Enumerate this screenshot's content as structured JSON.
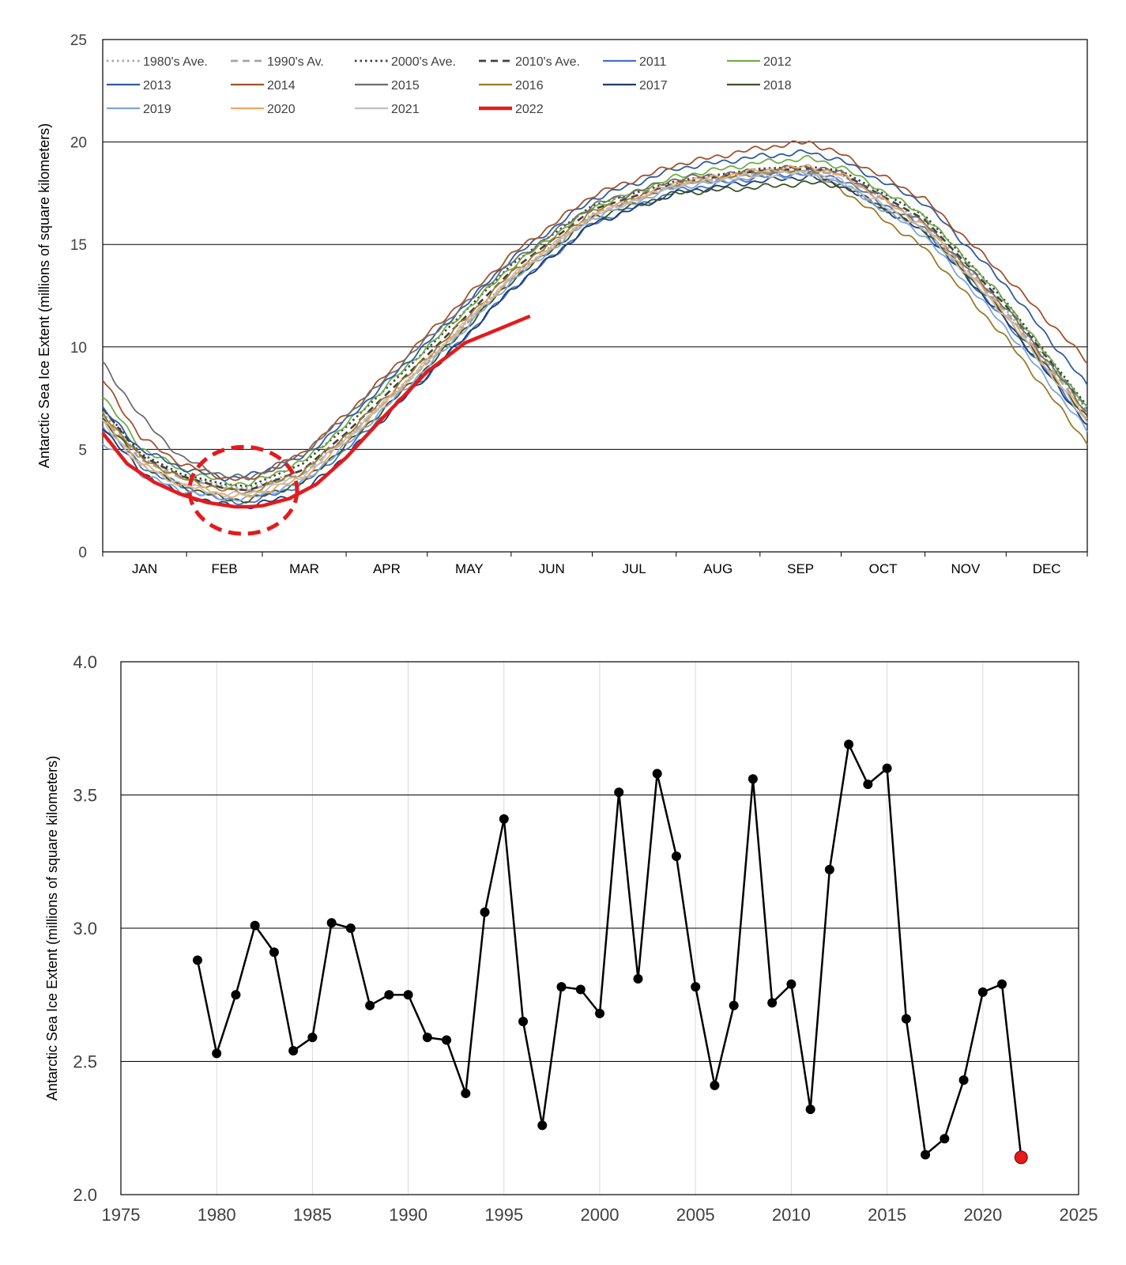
{
  "chart_data": [
    {
      "type": "line",
      "ylabel": "Antarctic Sea Ice Extent (millions of square kilometers)",
      "xlabel": "",
      "ylim": [
        0,
        25
      ],
      "y_ticks": [
        "0",
        "5",
        "10",
        "15",
        "20",
        "25"
      ],
      "y_tick_values": [
        0,
        5,
        10,
        15,
        20,
        25
      ],
      "x_units": "day of year",
      "xlim": [
        1,
        365
      ],
      "x_categories": [
        "JAN",
        "FEB",
        "MAR",
        "APR",
        "MAY",
        "JUN",
        "JUL",
        "AUG",
        "SEP",
        "OCT",
        "NOV",
        "DEC"
      ],
      "month_start_days": [
        1,
        32,
        60,
        91,
        121,
        152,
        182,
        213,
        244,
        274,
        305,
        335
      ],
      "grid": "horizontal",
      "legend_position": "top-left",
      "annotation": "red dashed circle around the February minimum",
      "annotation_center": [
        53,
        3.0
      ],
      "series": [
        {
          "name": "1980's Ave.",
          "color": "#a6a6a6",
          "style": "dotted",
          "x": [
            1,
            15,
            30,
            46,
            55,
            75,
            91,
            121,
            152,
            182,
            213,
            244,
            262,
            274,
            305,
            335,
            365
          ],
          "y": [
            6.8,
            4.6,
            3.7,
            3.2,
            3.1,
            4.0,
            5.6,
            9.3,
            13.4,
            16.5,
            17.9,
            18.5,
            18.6,
            18.4,
            16.1,
            11.8,
            6.9
          ]
        },
        {
          "name": "1990's Av.",
          "color": "#a6a6a6",
          "style": "dashed",
          "x": [
            1,
            15,
            30,
            46,
            55,
            75,
            91,
            121,
            152,
            182,
            213,
            244,
            262,
            274,
            305,
            335,
            365
          ],
          "y": [
            6.6,
            4.5,
            3.6,
            3.1,
            3.0,
            3.8,
            5.5,
            9.2,
            13.3,
            16.4,
            17.9,
            18.5,
            18.6,
            18.4,
            16.0,
            11.7,
            6.7
          ]
        },
        {
          "name": "2000's Ave.",
          "color": "#404040",
          "style": "dotted",
          "x": [
            1,
            15,
            30,
            46,
            55,
            75,
            91,
            121,
            152,
            182,
            213,
            244,
            262,
            274,
            305,
            335,
            365
          ],
          "y": [
            7.0,
            4.8,
            3.8,
            3.3,
            3.2,
            4.3,
            6.1,
            9.9,
            14.0,
            16.9,
            18.1,
            18.7,
            18.8,
            18.6,
            16.4,
            12.2,
            7.1
          ]
        },
        {
          "name": "2010's Ave.",
          "color": "#404040",
          "style": "dashed",
          "x": [
            1,
            15,
            30,
            46,
            55,
            75,
            91,
            121,
            152,
            182,
            213,
            244,
            262,
            274,
            305,
            335,
            365
          ],
          "y": [
            7.0,
            4.7,
            3.7,
            3.1,
            3.0,
            4.0,
            5.8,
            9.6,
            13.7,
            16.7,
            18.0,
            18.6,
            18.7,
            18.5,
            16.2,
            12.0,
            7.0
          ]
        },
        {
          "name": "2011",
          "color": "#4472c4",
          "style": "solid",
          "x": [
            1,
            15,
            30,
            46,
            55,
            75,
            91,
            121,
            152,
            182,
            213,
            244,
            262,
            274,
            305,
            335,
            365
          ],
          "y": [
            6.2,
            4.2,
            3.2,
            2.5,
            2.4,
            3.3,
            5.0,
            8.6,
            12.8,
            16.0,
            17.6,
            18.3,
            18.5,
            18.2,
            15.8,
            11.2,
            6.4
          ]
        },
        {
          "name": "2012",
          "color": "#70ad47",
          "style": "solid",
          "x": [
            1,
            15,
            30,
            46,
            55,
            75,
            91,
            121,
            152,
            182,
            213,
            244,
            262,
            274,
            305,
            335,
            365
          ],
          "y": [
            7.6,
            5.1,
            4.0,
            3.4,
            3.3,
            4.4,
            6.2,
            10.0,
            13.9,
            16.8,
            18.3,
            19.0,
            19.2,
            18.8,
            16.4,
            12.2,
            7.0
          ]
        },
        {
          "name": "2013",
          "color": "#2e5c9e",
          "style": "solid",
          "x": [
            1,
            15,
            30,
            46,
            55,
            75,
            91,
            121,
            152,
            182,
            213,
            244,
            262,
            274,
            305,
            335,
            365
          ],
          "y": [
            7.0,
            5.0,
            4.1,
            3.6,
            3.7,
            4.6,
            6.4,
            10.2,
            14.3,
            17.2,
            18.7,
            19.3,
            19.5,
            19.1,
            17.0,
            13.0,
            8.1
          ]
        },
        {
          "name": "2014",
          "color": "#a0522d",
          "style": "solid",
          "x": [
            1,
            15,
            30,
            46,
            55,
            75,
            91,
            121,
            152,
            182,
            213,
            244,
            262,
            274,
            305,
            335,
            365
          ],
          "y": [
            8.4,
            5.6,
            4.3,
            3.6,
            3.5,
            4.8,
            6.7,
            10.6,
            14.5,
            17.4,
            18.9,
            19.7,
            20.0,
            19.4,
            17.2,
            13.4,
            9.3
          ]
        },
        {
          "name": "2015",
          "color": "#6d6d6d",
          "style": "solid",
          "x": [
            1,
            15,
            30,
            46,
            55,
            75,
            91,
            121,
            152,
            182,
            213,
            244,
            262,
            274,
            305,
            335,
            365
          ],
          "y": [
            9.2,
            6.6,
            4.6,
            3.7,
            3.6,
            4.8,
            6.6,
            10.4,
            14.1,
            16.9,
            18.2,
            18.6,
            18.8,
            18.5,
            16.0,
            11.9,
            6.8
          ]
        },
        {
          "name": "2016",
          "color": "#9b7b28",
          "style": "solid",
          "x": [
            1,
            15,
            30,
            46,
            55,
            75,
            91,
            121,
            152,
            182,
            213,
            244,
            262,
            274,
            305,
            335,
            365
          ],
          "y": [
            6.8,
            4.6,
            3.6,
            3.0,
            2.9,
            3.9,
            5.7,
            9.5,
            13.6,
            16.6,
            17.9,
            18.5,
            18.6,
            17.7,
            14.8,
            10.4,
            5.3
          ]
        },
        {
          "name": "2017",
          "color": "#1f3b70",
          "style": "solid",
          "x": [
            1,
            15,
            30,
            46,
            55,
            75,
            91,
            121,
            152,
            182,
            213,
            244,
            262,
            274,
            305,
            335,
            365
          ],
          "y": [
            6.1,
            3.9,
            2.8,
            2.3,
            2.2,
            2.9,
            4.7,
            8.6,
            12.8,
            16.0,
            17.5,
            18.1,
            18.3,
            17.9,
            15.6,
            11.3,
            6.2
          ]
        },
        {
          "name": "2018",
          "color": "#375623",
          "style": "solid",
          "x": [
            1,
            15,
            30,
            46,
            55,
            75,
            91,
            121,
            152,
            182,
            213,
            244,
            262,
            274,
            305,
            335,
            365
          ],
          "y": [
            6.5,
            4.3,
            3.2,
            2.6,
            2.5,
            3.4,
            5.2,
            9.0,
            13.2,
            16.3,
            17.5,
            17.8,
            18.0,
            17.9,
            15.7,
            11.5,
            6.5
          ]
        },
        {
          "name": "2019",
          "color": "#7ea6d8",
          "style": "solid",
          "x": [
            1,
            15,
            30,
            46,
            55,
            75,
            91,
            121,
            152,
            182,
            213,
            244,
            262,
            274,
            305,
            335,
            365
          ],
          "y": [
            5.3,
            3.8,
            3.0,
            2.6,
            2.6,
            3.4,
            5.2,
            9.0,
            13.2,
            16.3,
            17.8,
            18.3,
            18.4,
            18.0,
            15.4,
            10.9,
            5.9
          ]
        },
        {
          "name": "2020",
          "color": "#f4a460",
          "style": "solid",
          "x": [
            1,
            15,
            30,
            46,
            55,
            75,
            91,
            121,
            152,
            182,
            213,
            244,
            262,
            274,
            305,
            335,
            365
          ],
          "y": [
            6.4,
            4.3,
            3.3,
            2.8,
            2.7,
            3.6,
            5.4,
            9.3,
            13.4,
            16.4,
            18.0,
            18.6,
            18.8,
            18.4,
            15.9,
            11.6,
            6.5
          ]
        },
        {
          "name": "2021",
          "color": "#bfbfbf",
          "style": "solid",
          "x": [
            1,
            15,
            30,
            46,
            55,
            75,
            91,
            121,
            152,
            182,
            213,
            244,
            262,
            274,
            305,
            335,
            365
          ],
          "y": [
            6.3,
            4.2,
            3.3,
            2.8,
            2.8,
            3.7,
            5.5,
            9.3,
            13.4,
            16.4,
            17.9,
            18.4,
            18.5,
            18.1,
            15.7,
            11.5,
            6.3
          ]
        },
        {
          "name": "2022",
          "color": "#e41a1c",
          "style": "solid",
          "x": [
            1,
            10,
            20,
            30,
            40,
            50,
            55,
            60,
            70,
            80,
            91,
            105,
            121,
            135,
            159
          ],
          "y": [
            5.8,
            4.3,
            3.4,
            2.8,
            2.4,
            2.2,
            2.2,
            2.25,
            2.6,
            3.3,
            4.6,
            6.6,
            8.8,
            10.2,
            11.5
          ]
        }
      ]
    },
    {
      "type": "line",
      "ylabel": "Antarctic Sea Ice Extent (millions of square kilometers)",
      "xlabel": "",
      "ylim": [
        2.0,
        4.0
      ],
      "xlim": [
        1975,
        2025
      ],
      "y_ticks": [
        "2.0",
        "2.5",
        "3.0",
        "3.5",
        "4.0"
      ],
      "y_tick_values": [
        2.0,
        2.5,
        3.0,
        3.5,
        4.0
      ],
      "x_ticks": [
        "1975",
        "1980",
        "1985",
        "1990",
        "1995",
        "2000",
        "2005",
        "2010",
        "2015",
        "2020",
        "2025"
      ],
      "x_tick_values": [
        1975,
        1980,
        1985,
        1990,
        1995,
        2000,
        2005,
        2010,
        2015,
        2020,
        2025
      ],
      "grid": "both",
      "line_color": "#000000",
      "highlight": {
        "x": 2022,
        "y": 2.14,
        "color": "#e41a1c"
      },
      "series": [
        {
          "x": [
            1979,
            1980,
            1981,
            1982,
            1983,
            1984,
            1985,
            1986,
            1987,
            1988,
            1989,
            1990,
            1991,
            1992,
            1993,
            1994,
            1995,
            1996,
            1997,
            1998,
            1999,
            2000,
            2001,
            2002,
            2003,
            2004,
            2005,
            2006,
            2007,
            2008,
            2009,
            2010,
            2011,
            2012,
            2013,
            2014,
            2015,
            2016,
            2017,
            2018,
            2019,
            2020,
            2021,
            2022
          ],
          "y": [
            2.88,
            2.53,
            2.75,
            3.01,
            2.91,
            2.54,
            2.59,
            3.02,
            3.0,
            2.71,
            2.75,
            2.75,
            2.59,
            2.58,
            2.38,
            3.06,
            3.41,
            2.65,
            2.26,
            2.78,
            2.77,
            2.68,
            3.51,
            2.81,
            3.58,
            3.27,
            2.78,
            2.41,
            2.71,
            3.56,
            2.72,
            2.79,
            2.32,
            3.22,
            3.69,
            3.54,
            3.6,
            2.66,
            2.15,
            2.21,
            2.43,
            2.76,
            2.79,
            2.14
          ]
        }
      ]
    }
  ]
}
